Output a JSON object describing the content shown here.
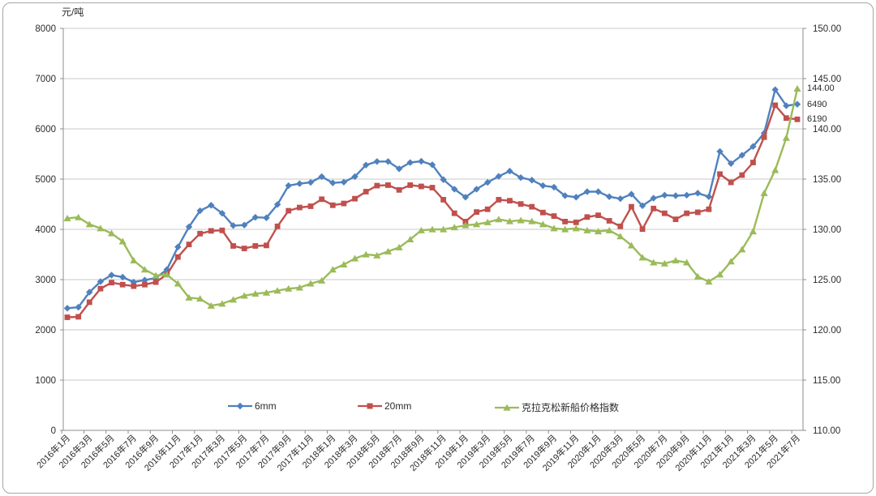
{
  "chart_data": {
    "type": "line",
    "title": "",
    "unit_label": "元/吨",
    "grid": true,
    "legend_position": "bottom-inside",
    "x_tick_labels": [
      "2016年1月",
      "2016年3月",
      "2016年5月",
      "2016年7月",
      "2016年9月",
      "2016年11月",
      "2017年1月",
      "2017年3月",
      "2017年5月",
      "2017年7月",
      "2017年9月",
      "2017年11月",
      "2018年1月",
      "2018年3月",
      "2018年5月",
      "2018年7月",
      "2018年9月",
      "2018年11月",
      "2019年1月",
      "2019年3月",
      "2019年5月",
      "2019年7月",
      "2019年9月",
      "2019年11月",
      "2020年1月",
      "2020年3月",
      "2020年5月",
      "2020年7月",
      "2020年9月",
      "2020年11月",
      "2021年1月",
      "2021年3月",
      "2021年5月",
      "2021年7月"
    ],
    "x_range_note": "monthly data 2016年1月 - 2021年7月, 67 points, labels shown every 2 months",
    "left_axis": {
      "min": 0,
      "max": 8000,
      "step": 1000,
      "tick_labels": [
        "8000",
        "7000",
        "6000",
        "5000",
        "4000",
        "3000",
        "2000",
        "1000",
        "0"
      ]
    },
    "right_axis": {
      "min": 110,
      "max": 150,
      "step": 5,
      "tick_labels": [
        "150.00",
        "145.00",
        "140.00",
        "135.00",
        "130.00",
        "125.00",
        "120.00",
        "115.00",
        "110.00"
      ]
    },
    "series": [
      {
        "name": "6mm",
        "marker": "diamond",
        "color": "#4F81BD",
        "axis": "left",
        "values": [
          2430,
          2450,
          2750,
          2960,
          3090,
          3050,
          2950,
          2990,
          3030,
          3200,
          3650,
          4050,
          4370,
          4480,
          4320,
          4075,
          4085,
          4240,
          4230,
          4495,
          4870,
          4910,
          4935,
          5050,
          4925,
          4940,
          5050,
          5280,
          5350,
          5350,
          5205,
          5330,
          5355,
          5285,
          4990,
          4800,
          4640,
          4800,
          4935,
          5055,
          5160,
          5030,
          4980,
          4870,
          4840,
          4670,
          4640,
          4750,
          4750,
          4650,
          4610,
          4700,
          4470,
          4620,
          4680,
          4670,
          4680,
          4720,
          4650,
          5550,
          5310,
          5475,
          5650,
          5915,
          6780,
          6460,
          6490
        ]
      },
      {
        "name": "20mm",
        "marker": "square",
        "color": "#C0504D",
        "axis": "left",
        "values": [
          2250,
          2260,
          2550,
          2820,
          2940,
          2900,
          2870,
          2900,
          2950,
          3100,
          3450,
          3700,
          3915,
          3970,
          3980,
          3670,
          3620,
          3670,
          3680,
          4060,
          4370,
          4435,
          4460,
          4600,
          4480,
          4515,
          4610,
          4750,
          4870,
          4880,
          4785,
          4880,
          4855,
          4830,
          4590,
          4320,
          4155,
          4345,
          4400,
          4590,
          4570,
          4505,
          4450,
          4335,
          4265,
          4155,
          4140,
          4245,
          4280,
          4170,
          4060,
          4450,
          4005,
          4415,
          4320,
          4200,
          4320,
          4340,
          4400,
          5100,
          4935,
          5080,
          5330,
          5835,
          6470,
          6215,
          6190
        ]
      },
      {
        "name": "克拉克松新船价格指数",
        "marker": "triangle",
        "color": "#9BBB59",
        "axis": "right",
        "values": [
          131.1,
          131.2,
          130.5,
          130.1,
          129.6,
          128.8,
          126.9,
          126.0,
          125.4,
          125.5,
          124.6,
          123.2,
          123.1,
          122.4,
          122.6,
          123.0,
          123.4,
          123.6,
          123.7,
          123.9,
          124.1,
          124.2,
          124.6,
          124.9,
          126.0,
          126.5,
          127.1,
          127.5,
          127.4,
          127.8,
          128.2,
          129.0,
          129.9,
          130.0,
          130.0,
          130.2,
          130.4,
          130.5,
          130.7,
          131.0,
          130.8,
          130.9,
          130.8,
          130.5,
          130.1,
          130.0,
          130.1,
          129.9,
          129.8,
          129.9,
          129.3,
          128.4,
          127.2,
          126.7,
          126.6,
          126.9,
          126.7,
          125.3,
          124.8,
          125.5,
          126.8,
          128.0,
          129.8,
          133.6,
          135.9,
          139.1,
          144.0
        ]
      }
    ],
    "end_labels": [
      {
        "text": "144.00",
        "series": "克拉克松新船价格指数"
      },
      {
        "text": "6490",
        "series": "6mm"
      },
      {
        "text": "6190",
        "series": "20mm"
      }
    ]
  },
  "colors": {
    "grid": "#c9c9c9",
    "axis": "#8c8c8c",
    "text": "#2b2b2b",
    "background": "#ffffff",
    "frame_border": "#a6a6a6"
  }
}
